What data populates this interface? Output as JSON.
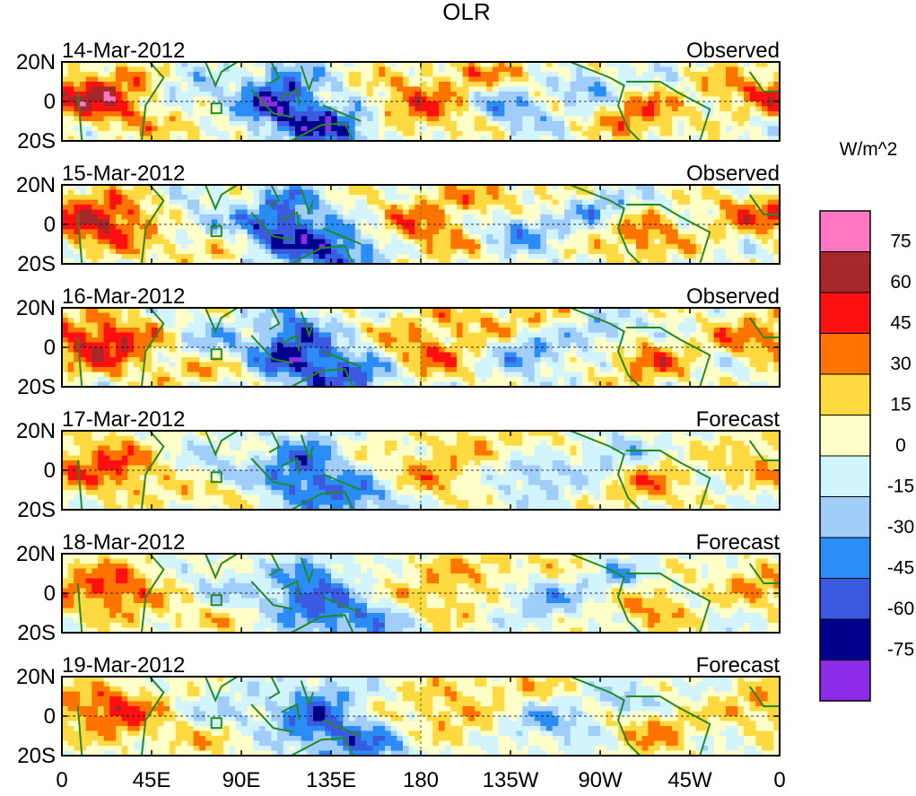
{
  "chart_data": {
    "type": "heatmap",
    "title": "OLR",
    "colorbar_label": "W/m^2",
    "colorbar_levels": [
      "75",
      "60",
      "45",
      "30",
      "15",
      "0",
      "-15",
      "-30",
      "-45",
      "-60",
      "-75"
    ],
    "colorbar_colors": [
      "#ff77c0",
      "#a52929",
      "#ff1010",
      "#ff7300",
      "#ffd940",
      "#ffffc8",
      "#d2f4fc",
      "#a0cdfa",
      "#2a8cf5",
      "#3b5ae0",
      "#00008c",
      "#8c2be8"
    ],
    "lat_ticks": [
      "20N",
      "0",
      "20S"
    ],
    "lon_ticks": [
      "0",
      "45E",
      "90E",
      "135E",
      "180",
      "135W",
      "90W",
      "45W",
      "0"
    ],
    "lon_range": [
      0,
      360
    ],
    "lat_range": [
      -20,
      20
    ],
    "panels": [
      {
        "date": "14-Mar-2012",
        "status": "Observed"
      },
      {
        "date": "15-Mar-2012",
        "status": "Observed"
      },
      {
        "date": "16-Mar-2012",
        "status": "Observed"
      },
      {
        "date": "17-Mar-2012",
        "status": "Forecast"
      },
      {
        "date": "18-Mar-2012",
        "status": "Forecast"
      },
      {
        "date": "19-Mar-2012",
        "status": "Forecast"
      }
    ]
  }
}
